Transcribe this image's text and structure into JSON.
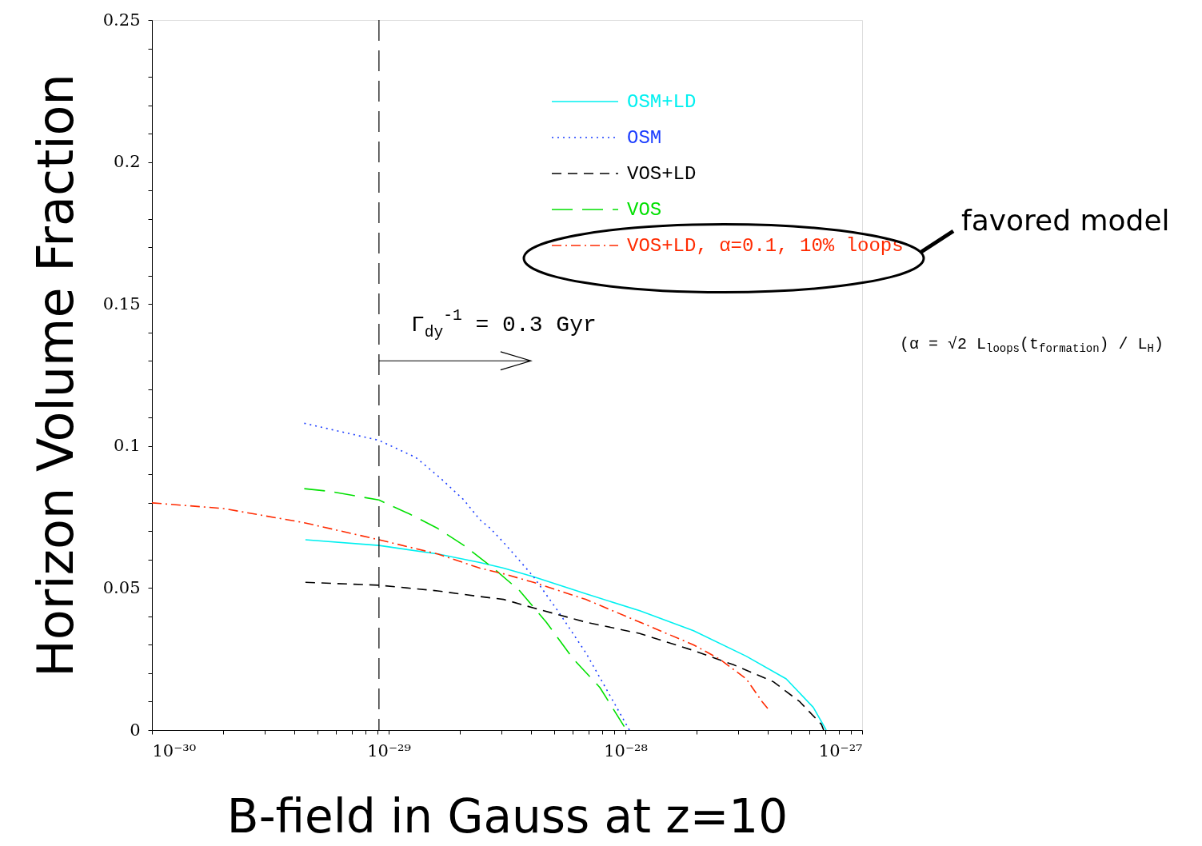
{
  "chart_data": {
    "type": "line",
    "xlabel": "B-field in Gauss at z=10",
    "ylabel": "Horizon Volume Fraction",
    "log": "x",
    "xlim": [
      1e-30,
      1e-27
    ],
    "xticks": [
      {
        "value": 1e-30,
        "label": "10⁻³⁰"
      },
      {
        "value": 2e-30,
        "label": null
      },
      {
        "value": 3e-30,
        "label": null
      },
      {
        "value": 4e-30,
        "label": null
      },
      {
        "value": 5e-30,
        "label": null
      },
      {
        "value": 6e-30,
        "label": null
      },
      {
        "value": 7e-30,
        "label": null
      },
      {
        "value": 8e-30,
        "label": null
      },
      {
        "value": 9e-30,
        "label": null
      },
      {
        "value": 1e-29,
        "label": "10⁻²⁹"
      },
      {
        "value": 2e-29,
        "label": null
      },
      {
        "value": 3e-29,
        "label": null
      },
      {
        "value": 4e-29,
        "label": null
      },
      {
        "value": 5e-29,
        "label": null
      },
      {
        "value": 6e-29,
        "label": null
      },
      {
        "value": 7e-29,
        "label": null
      },
      {
        "value": 8e-29,
        "label": null
      },
      {
        "value": 9e-29,
        "label": null
      },
      {
        "value": 1e-28,
        "label": "10⁻²⁸"
      },
      {
        "value": 2e-28,
        "label": null
      },
      {
        "value": 3e-28,
        "label": null
      },
      {
        "value": 4e-28,
        "label": null
      },
      {
        "value": 5e-28,
        "label": null
      },
      {
        "value": 6e-28,
        "label": null
      },
      {
        "value": 7e-28,
        "label": null
      },
      {
        "value": 8e-28,
        "label": null
      },
      {
        "value": 9e-28,
        "label": null
      },
      {
        "value": 1e-27,
        "label": "10⁻²⁷"
      }
    ],
    "ylim": [
      0,
      0.25
    ],
    "yticks": [
      0,
      {
        "value": 0.01,
        "label": null
      },
      {
        "value": 0.02,
        "label": null
      },
      {
        "value": 0.03,
        "label": null
      },
      {
        "value": 0.04,
        "label": null
      },
      0.05,
      {
        "value": 0.06,
        "label": null
      },
      {
        "value": 0.07,
        "label": null
      },
      {
        "value": 0.08,
        "label": null
      },
      {
        "value": 0.09,
        "label": null
      },
      0.1,
      {
        "value": 0.11,
        "label": null
      },
      {
        "value": 0.12,
        "label": null
      },
      {
        "value": 0.13,
        "label": null
      },
      {
        "value": 0.14,
        "label": null
      },
      0.15,
      {
        "value": 0.16,
        "label": null
      },
      {
        "value": 0.17,
        "label": null
      },
      {
        "value": 0.18,
        "label": null
      },
      {
        "value": 0.19,
        "label": null
      },
      0.2,
      {
        "value": 0.21,
        "label": null
      },
      {
        "value": 0.22,
        "label": null
      },
      {
        "value": 0.23,
        "label": null
      },
      {
        "value": 0.24,
        "label": null
      },
      0.25
    ],
    "grid": false,
    "legend": "top right",
    "series": [
      {
        "name": "OSM+LD",
        "color": "#00f0f0",
        "line_style": "solid",
        "x": [
          4.45e-30,
          9.1e-30,
          1.61e-29,
          2.43e-29,
          3.06e-29,
          4.09e-29,
          6.8e-29,
          1.15e-28,
          1.94e-28,
          3.24e-28,
          4.78e-28,
          6.22e-28,
          7.05e-28
        ],
        "values": [
          0.067,
          0.065,
          0.062,
          0.059,
          0.057,
          0.054,
          0.048,
          0.042,
          0.035,
          0.026,
          0.018,
          0.008,
          0
        ]
      },
      {
        "name": "OSM",
        "color": "#1a3cff",
        "line_style": "dotted",
        "x": [
          4.4e-30,
          9.1e-30,
          1.3e-29,
          1.64e-29,
          2.08e-29,
          2.43e-29,
          2.69e-29,
          3.14e-29,
          4.09e-29,
          5.28e-29,
          6.83e-29,
          8.9e-29,
          1.04e-28
        ],
        "values": [
          0.108,
          0.102,
          0.096,
          0.089,
          0.081,
          0.074,
          0.071,
          0.065,
          0.054,
          0.041,
          0.027,
          0.01,
          0
        ]
      },
      {
        "name": "VOS+LD",
        "color": "#000000",
        "line_style": "dashed",
        "x": [
          4.45e-30,
          9.1e-30,
          1.61e-29,
          2.43e-29,
          3.06e-29,
          4.09e-29,
          6.8e-29,
          1.15e-28,
          1.94e-28,
          2.86e-28,
          4.22e-28,
          5.45e-28,
          6.73e-28,
          6.88e-28
        ],
        "values": [
          0.052,
          0.051,
          0.049,
          0.047,
          0.046,
          0.043,
          0.038,
          0.034,
          0.028,
          0.023,
          0.017,
          0.01,
          0.002,
          0
        ]
      },
      {
        "name": "VOS",
        "color": "#00e000",
        "line_style": "longdash",
        "x": [
          4.4e-30,
          5.67e-30,
          9.1e-30,
          1.23e-29,
          1.61e-29,
          2.08e-29,
          2.77e-29,
          3.58e-29,
          4.63e-29,
          6.03e-29,
          7.8e-29,
          1.01e-28
        ],
        "values": [
          0.085,
          0.084,
          0.081,
          0.076,
          0.071,
          0.065,
          0.057,
          0.049,
          0.038,
          0.025,
          0.015,
          0
        ]
      },
      {
        "name": "VOS+LD, α=0.1, 10% loops",
        "color": "#ff2a00",
        "line_style": "dashdot",
        "x": [
          1e-30,
          2e-30,
          4.4e-30,
          9.1e-30,
          1.61e-29,
          2.43e-29,
          3.06e-29,
          4.09e-29,
          6.8e-29,
          1.15e-28,
          1.94e-28,
          2.5e-28,
          3.24e-28,
          3.78e-28,
          4.05e-28
        ],
        "values": [
          0.08,
          0.078,
          0.073,
          0.067,
          0.062,
          0.057,
          0.055,
          0.052,
          0.046,
          0.038,
          0.03,
          0.025,
          0.018,
          0.01,
          0.007
        ]
      }
    ],
    "ref_lines": [
      {
        "axis": "x",
        "value": 9.1e-30,
        "line_style": "longdash",
        "color": "#000000"
      }
    ],
    "annotations": [
      {
        "text": "Γ$_{dy}$$^{-1}$ = 0.3 Gyr",
        "x": 9.1e-30,
        "y": 0.13
      },
      "favored model",
      "(α = √2 L$_{loops}$(t$_{formation}$) / L$_{H}$)"
    ]
  }
}
